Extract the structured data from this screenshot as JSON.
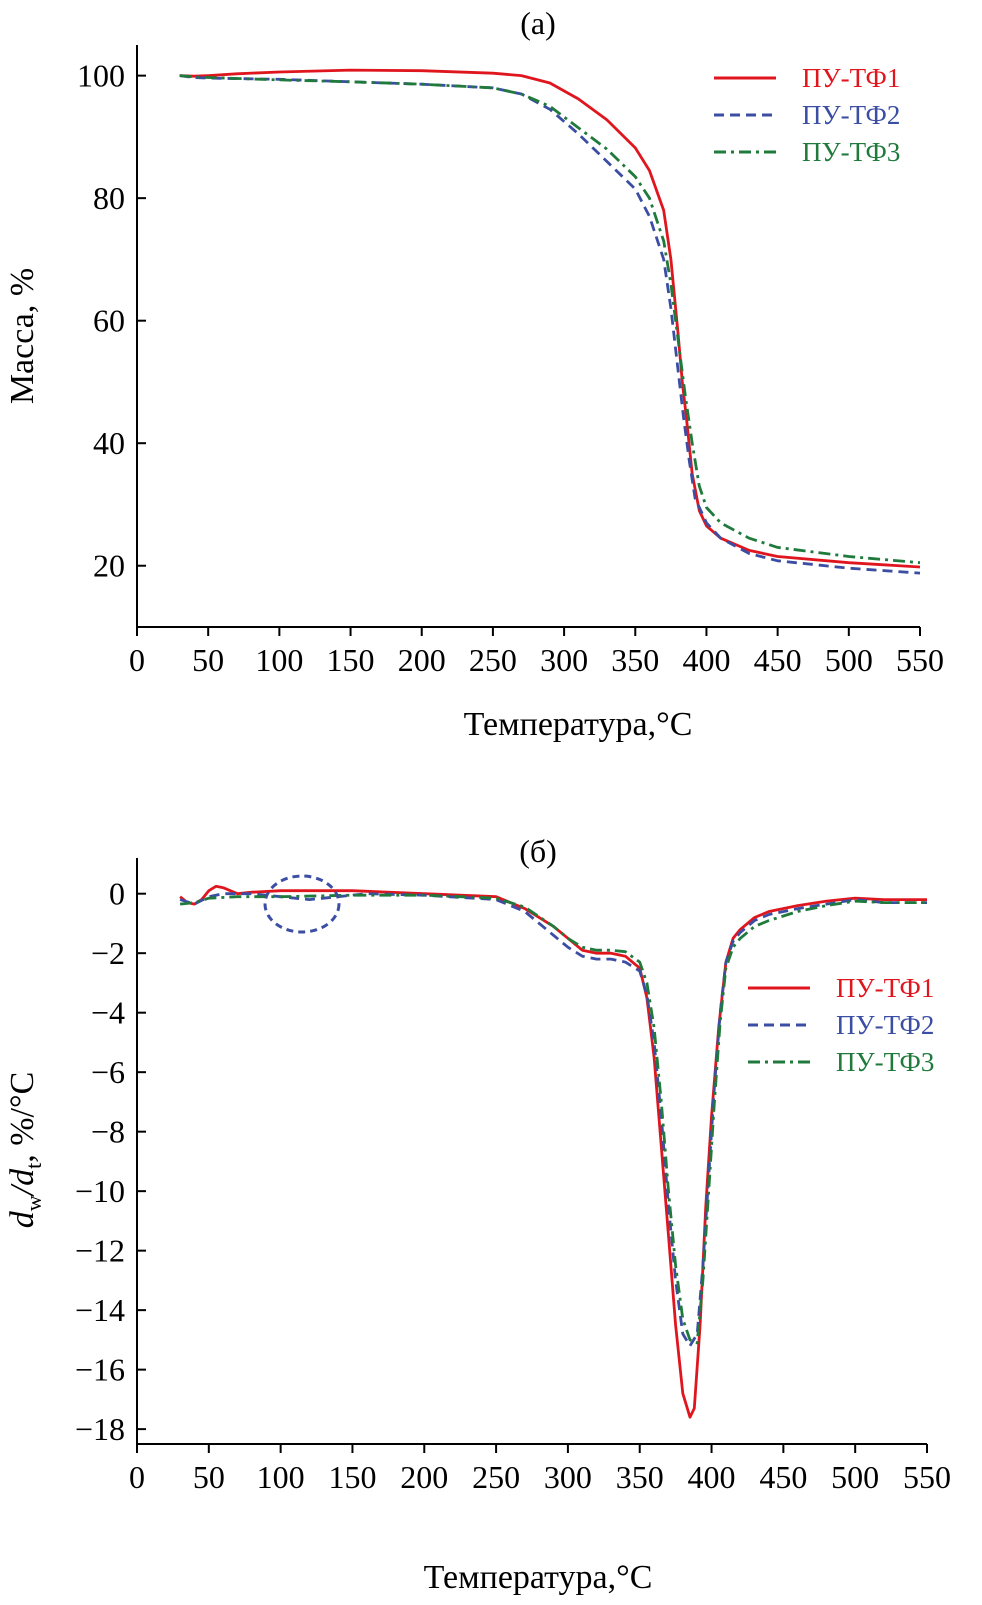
{
  "chart_data": [
    {
      "type": "line",
      "panel_label": "(a)",
      "xlabel": "Температура,°C",
      "ylabel": "Масса, %",
      "xlim": [
        0,
        550
      ],
      "ylim": [
        10,
        105
      ],
      "xticks": [
        0,
        50,
        100,
        150,
        200,
        250,
        300,
        350,
        400,
        450,
        500,
        550
      ],
      "yticks": [
        20,
        40,
        60,
        80,
        100
      ],
      "legend_position": "top-right",
      "series": [
        {
          "name": "ПУ-ТФ1",
          "color": "#e0161f",
          "dash": "solid",
          "points": [
            [
              30,
              100
            ],
            [
              40,
              99.9
            ],
            [
              50,
              100
            ],
            [
              70,
              100.3
            ],
            [
              100,
              100.6
            ],
            [
              150,
              100.9
            ],
            [
              200,
              100.8
            ],
            [
              250,
              100.4
            ],
            [
              270,
              100
            ],
            [
              290,
              98.8
            ],
            [
              310,
              96.2
            ],
            [
              330,
              92.8
            ],
            [
              350,
              88.2
            ],
            [
              360,
              84.5
            ],
            [
              370,
              78
            ],
            [
              375,
              70
            ],
            [
              380,
              58
            ],
            [
              383,
              50
            ],
            [
              386,
              44
            ],
            [
              390,
              35
            ],
            [
              395,
              29
            ],
            [
              400,
              26.5
            ],
            [
              410,
              24.5
            ],
            [
              430,
              22.5
            ],
            [
              450,
              21.5
            ],
            [
              500,
              20.5
            ],
            [
              550,
              19.8
            ]
          ]
        },
        {
          "name": "ПУ-ТФ2",
          "color": "#3b4ea3",
          "dash": "dashed",
          "points": [
            [
              30,
              100
            ],
            [
              40,
              99.7
            ],
            [
              50,
              99.6
            ],
            [
              100,
              99.4
            ],
            [
              150,
              99
            ],
            [
              200,
              98.6
            ],
            [
              250,
              98
            ],
            [
              270,
              97
            ],
            [
              290,
              94.5
            ],
            [
              310,
              90.5
            ],
            [
              330,
              86
            ],
            [
              350,
              81.5
            ],
            [
              360,
              77
            ],
            [
              370,
              70
            ],
            [
              375,
              62
            ],
            [
              380,
              52
            ],
            [
              384,
              44
            ],
            [
              388,
              37
            ],
            [
              392,
              31
            ],
            [
              400,
              27
            ],
            [
              410,
              24.5
            ],
            [
              430,
              22
            ],
            [
              450,
              20.8
            ],
            [
              500,
              19.6
            ],
            [
              550,
              18.8
            ]
          ]
        },
        {
          "name": "ПУ-ТФ3",
          "color": "#1f7a3c",
          "dash": "dashdot",
          "points": [
            [
              30,
              100
            ],
            [
              40,
              99.8
            ],
            [
              50,
              99.7
            ],
            [
              100,
              99.3
            ],
            [
              150,
              99
            ],
            [
              200,
              98.6
            ],
            [
              250,
              98
            ],
            [
              270,
              97
            ],
            [
              290,
              95
            ],
            [
              310,
              91.5
            ],
            [
              330,
              88
            ],
            [
              350,
              83.5
            ],
            [
              360,
              80
            ],
            [
              370,
              73
            ],
            [
              375,
              66
            ],
            [
              380,
              57
            ],
            [
              385,
              48
            ],
            [
              390,
              40
            ],
            [
              395,
              33
            ],
            [
              400,
              29.5
            ],
            [
              410,
              27
            ],
            [
              430,
              24.5
            ],
            [
              450,
              23
            ],
            [
              500,
              21.5
            ],
            [
              550,
              20.5
            ]
          ]
        }
      ]
    },
    {
      "type": "line",
      "panel_label": "(б)",
      "xlabel": "Температура,°C",
      "ylabel_main": "d",
      "ylabel_sub1": "w",
      "ylabel_mid": "/d",
      "ylabel_sub2": "t",
      "ylabel_tail": ", %/°C",
      "xlim": [
        0,
        550
      ],
      "ylim": [
        -18.5,
        1.2
      ],
      "xticks": [
        0,
        50,
        100,
        150,
        200,
        250,
        300,
        350,
        400,
        450,
        500,
        550
      ],
      "yticks": [
        "0",
        "−2",
        "−4",
        "−6",
        "−8",
        "−10",
        "−12",
        "−14",
        "−16",
        "−18"
      ],
      "legend_position": "right",
      "annotation": "circle highlighting the region around 100–140 °C",
      "series": [
        {
          "name": "ПУ-ТФ1",
          "color": "#e0161f",
          "dash": "solid",
          "points": [
            [
              30,
              -0.1
            ],
            [
              35,
              -0.3
            ],
            [
              40,
              -0.35
            ],
            [
              45,
              -0.2
            ],
            [
              50,
              0.1
            ],
            [
              55,
              0.25
            ],
            [
              60,
              0.2
            ],
            [
              70,
              0
            ],
            [
              80,
              0.05
            ],
            [
              100,
              0.1
            ],
            [
              150,
              0.1
            ],
            [
              200,
              0
            ],
            [
              250,
              -0.1
            ],
            [
              270,
              -0.5
            ],
            [
              290,
              -1.1
            ],
            [
              300,
              -1.5
            ],
            [
              310,
              -1.9
            ],
            [
              320,
              -2.0
            ],
            [
              330,
              -2.0
            ],
            [
              340,
              -2.1
            ],
            [
              350,
              -2.5
            ],
            [
              355,
              -3.5
            ],
            [
              360,
              -5.5
            ],
            [
              365,
              -8.5
            ],
            [
              370,
              -11.5
            ],
            [
              375,
              -14.5
            ],
            [
              380,
              -16.8
            ],
            [
              385,
              -17.6
            ],
            [
              388,
              -17.3
            ],
            [
              392,
              -14.5
            ],
            [
              396,
              -10.5
            ],
            [
              400,
              -7.5
            ],
            [
              405,
              -4.5
            ],
            [
              410,
              -2.3
            ],
            [
              415,
              -1.5
            ],
            [
              420,
              -1.2
            ],
            [
              430,
              -0.8
            ],
            [
              440,
              -0.6
            ],
            [
              460,
              -0.4
            ],
            [
              480,
              -0.25
            ],
            [
              500,
              -0.15
            ],
            [
              520,
              -0.2
            ],
            [
              550,
              -0.2
            ]
          ]
        },
        {
          "name": "ПУ-ТФ2",
          "color": "#3b4ea3",
          "dash": "dashed",
          "points": [
            [
              30,
              -0.2
            ],
            [
              40,
              -0.35
            ],
            [
              50,
              -0.1
            ],
            [
              60,
              0
            ],
            [
              80,
              0
            ],
            [
              100,
              -0.1
            ],
            [
              120,
              -0.2
            ],
            [
              140,
              -0.1
            ],
            [
              160,
              0
            ],
            [
              200,
              -0.05
            ],
            [
              250,
              -0.2
            ],
            [
              270,
              -0.6
            ],
            [
              290,
              -1.4
            ],
            [
              300,
              -1.8
            ],
            [
              310,
              -2.1
            ],
            [
              320,
              -2.2
            ],
            [
              330,
              -2.2
            ],
            [
              340,
              -2.3
            ],
            [
              350,
              -2.6
            ],
            [
              355,
              -3.4
            ],
            [
              360,
              -5
            ],
            [
              365,
              -7.5
            ],
            [
              370,
              -10.5
            ],
            [
              375,
              -13
            ],
            [
              380,
              -14.8
            ],
            [
              385,
              -15.2
            ],
            [
              390,
              -14.8
            ],
            [
              394,
              -12.5
            ],
            [
              398,
              -9.5
            ],
            [
              402,
              -6.5
            ],
            [
              406,
              -4
            ],
            [
              410,
              -2.3
            ],
            [
              415,
              -1.6
            ],
            [
              420,
              -1.3
            ],
            [
              430,
              -0.9
            ],
            [
              440,
              -0.7
            ],
            [
              460,
              -0.5
            ],
            [
              480,
              -0.35
            ],
            [
              500,
              -0.2
            ],
            [
              520,
              -0.3
            ],
            [
              550,
              -0.3
            ]
          ]
        },
        {
          "name": "ПУ-ТФ3",
          "color": "#1f7a3c",
          "dash": "dashdot",
          "points": [
            [
              30,
              -0.35
            ],
            [
              40,
              -0.3
            ],
            [
              50,
              -0.15
            ],
            [
              70,
              -0.1
            ],
            [
              100,
              -0.1
            ],
            [
              150,
              -0.05
            ],
            [
              200,
              -0.05
            ],
            [
              250,
              -0.15
            ],
            [
              270,
              -0.45
            ],
            [
              290,
              -1.1
            ],
            [
              300,
              -1.5
            ],
            [
              310,
              -1.8
            ],
            [
              320,
              -1.9
            ],
            [
              330,
              -1.9
            ],
            [
              340,
              -1.95
            ],
            [
              350,
              -2.3
            ],
            [
              355,
              -3
            ],
            [
              360,
              -4.5
            ],
            [
              365,
              -7
            ],
            [
              370,
              -10
            ],
            [
              375,
              -12.5
            ],
            [
              380,
              -14.3
            ],
            [
              385,
              -15
            ],
            [
              390,
              -15.1
            ],
            [
              394,
              -13
            ],
            [
              398,
              -10
            ],
            [
              402,
              -7
            ],
            [
              406,
              -4.3
            ],
            [
              410,
              -2.5
            ],
            [
              415,
              -1.8
            ],
            [
              420,
              -1.5
            ],
            [
              430,
              -1.1
            ],
            [
              440,
              -0.9
            ],
            [
              460,
              -0.6
            ],
            [
              480,
              -0.4
            ],
            [
              500,
              -0.25
            ],
            [
              520,
              -0.3
            ],
            [
              550,
              -0.3
            ]
          ]
        }
      ]
    }
  ]
}
